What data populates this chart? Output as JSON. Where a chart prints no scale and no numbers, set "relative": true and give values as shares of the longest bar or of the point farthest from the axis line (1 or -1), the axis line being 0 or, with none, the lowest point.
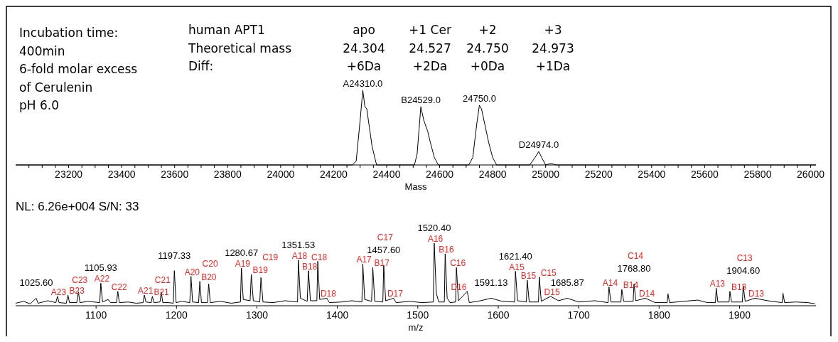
{
  "chart_data": [
    {
      "type": "line",
      "relative": true,
      "xlabel": "Mass",
      "xlim": [
        23000,
        26020
      ],
      "xticks": [
        {
          "value": 23050,
          "label": null
        },
        {
          "value": 23100,
          "label": null
        },
        {
          "value": 23150,
          "label": null
        },
        23200,
        {
          "value": 23250,
          "label": null
        },
        {
          "value": 23300,
          "label": null
        },
        {
          "value": 23350,
          "label": null
        },
        23400,
        {
          "value": 23450,
          "label": null
        },
        {
          "value": 23500,
          "label": null
        },
        {
          "value": 23550,
          "label": null
        },
        23600,
        {
          "value": 23650,
          "label": null
        },
        {
          "value": 23700,
          "label": null
        },
        {
          "value": 23750,
          "label": null
        },
        23800,
        {
          "value": 23850,
          "label": null
        },
        {
          "value": 23900,
          "label": null
        },
        {
          "value": 23950,
          "label": null
        },
        24000,
        {
          "value": 24050,
          "label": null
        },
        {
          "value": 24100,
          "label": null
        },
        {
          "value": 24150,
          "label": null
        },
        24200,
        {
          "value": 24250,
          "label": null
        },
        {
          "value": 24300,
          "label": null
        },
        {
          "value": 24350,
          "label": null
        },
        24400,
        {
          "value": 24450,
          "label": null
        },
        {
          "value": 24500,
          "label": null
        },
        {
          "value": 24550,
          "label": null
        },
        24600,
        {
          "value": 24650,
          "label": null
        },
        {
          "value": 24700,
          "label": null
        },
        {
          "value": 24750,
          "label": null
        },
        24800,
        {
          "value": 24850,
          "label": null
        },
        {
          "value": 24900,
          "label": null
        },
        {
          "value": 24950,
          "label": null
        },
        25000,
        {
          "value": 25050,
          "label": null
        },
        {
          "value": 25100,
          "label": null
        },
        {
          "value": 25150,
          "label": null
        },
        25200,
        {
          "value": 25250,
          "label": null
        },
        {
          "value": 25300,
          "label": null
        },
        {
          "value": 25350,
          "label": null
        },
        25400,
        {
          "value": 25450,
          "label": null
        },
        {
          "value": 25500,
          "label": null
        },
        {
          "value": 25550,
          "label": null
        },
        25600,
        {
          "value": 25650,
          "label": null
        },
        {
          "value": 25700,
          "label": null
        },
        {
          "value": 25750,
          "label": null
        },
        25800,
        {
          "value": 25850,
          "label": null
        },
        {
          "value": 25900,
          "label": null
        },
        {
          "value": 25950,
          "label": null
        },
        26000
      ],
      "series": [
        {
          "color": "#000000",
          "x": [
            23000,
            24270,
            24285,
            24300,
            24310,
            24318,
            24325,
            24335,
            24345,
            24362,
            24505,
            24515,
            24529,
            24540,
            24555,
            24565,
            24580,
            24595,
            24710,
            24725,
            24740,
            24750,
            24758,
            24770,
            24785,
            24800,
            24815,
            24940,
            24960,
            24974,
            24985,
            25000,
            25020,
            25040,
            26020
          ],
          "values": [
            0,
            0,
            0.05,
            0.6,
            1,
            0.78,
            0.75,
            0.5,
            0.25,
            0,
            0,
            0.15,
            0.78,
            0.6,
            0.45,
            0.3,
            0.1,
            0,
            0,
            0.1,
            0.55,
            0.8,
            0.75,
            0.55,
            0.3,
            0.1,
            0,
            0,
            0.1,
            0.18,
            0.1,
            0,
            0.02,
            0,
            0
          ]
        }
      ],
      "annotations": [
        "Incubation time:",
        "400min",
        "6-fold molar excess",
        "of Cerulenin",
        "pH 6.0",
        "human APT1",
        "apo",
        "+1 Cer",
        "+2",
        "+3",
        "Theoretical mass",
        "24.304",
        "24.527",
        "24.750",
        "24.973",
        "Diff:",
        "+6Da",
        "+2Da",
        "+0Da",
        "+1Da",
        {
          "text": "A24310.0",
          "x": 24310,
          "y": 1
        },
        {
          "text": "B24529.0",
          "x": 24529,
          "y": 0.78
        },
        {
          "text": "24750.0",
          "x": 24750,
          "y": 0.8
        },
        {
          "text": "D24974.0",
          "x": 24974,
          "y": 0.18
        }
      ]
    },
    {
      "type": "line",
      "relative": true,
      "title": "NL: 6.26e+004  S/N: 33",
      "xlabel": "m/z",
      "xlim": [
        1000,
        1995
      ],
      "xticks": [
        1100,
        1200,
        1300,
        1400,
        1500,
        1600,
        1700,
        1800,
        1900
      ],
      "series": [
        {
          "color": "#000000",
          "x": [
            1000,
            1010,
            1018,
            1025.6,
            1028,
            1040,
            1050,
            1052,
            1054,
            1063,
            1065,
            1067,
            1076,
            1078,
            1080,
            1090,
            1104.5,
            1105.9,
            1108,
            1115,
            1118,
            1125.5,
            1127,
            1129,
            1140,
            1150,
            1158.5,
            1160,
            1162,
            1168.5,
            1170,
            1172,
            1179.5,
            1181,
            1183,
            1190,
            1196,
            1197.3,
            1199.5,
            1207,
            1216.5,
            1218,
            1220,
            1227.5,
            1229,
            1231,
            1238.5,
            1240,
            1242,
            1255,
            1268,
            1279.5,
            1280.7,
            1283,
            1291.5,
            1293,
            1295.5,
            1303.5,
            1305,
            1307.5,
            1320,
            1335,
            1350.5,
            1351.5,
            1354,
            1362.5,
            1364,
            1366.5,
            1374.5,
            1375.6,
            1378,
            1387,
            1390,
            1405,
            1418,
            1430.5,
            1431.6,
            1434,
            1442.5,
            1444,
            1446.5,
            1456.5,
            1457.6,
            1460,
            1470,
            1473,
            1490,
            1505,
            1519.3,
            1520.4,
            1523,
            1526,
            1533,
            1534,
            1536.5,
            1540,
            1547,
            1548,
            1550.5,
            1561.5,
            1564,
            1578,
            1591.1,
            1605,
            1620.3,
            1621.4,
            1624,
            1635,
            1636,
            1638.5,
            1650,
            1651,
            1653.5,
            1665,
            1675,
            1685.9,
            1700,
            1720,
            1736.5,
            1737.7,
            1740,
            1752.5,
            1753.6,
            1756,
            1767.7,
            1768.8,
            1771,
            1783,
            1795,
            1810,
            1811,
            1813,
            1830,
            1848,
            1860,
            1870,
            1871,
            1873,
            1887,
            1888,
            1890,
            1903.5,
            1904.6,
            1907,
            1919,
            1935,
            1953,
            1954,
            1956,
            1970,
            1985,
            1994
          ],
          "values": [
            0.04,
            0.07,
            0.03,
            0.12,
            0.04,
            0.08,
            0.05,
            0.15,
            0.05,
            0.04,
            0.17,
            0.05,
            0.05,
            0.22,
            0.05,
            0.07,
            0.05,
            0.36,
            0.06,
            0.1,
            0.05,
            0.05,
            0.23,
            0.05,
            0.06,
            0.04,
            0.05,
            0.17,
            0.06,
            0.05,
            0.15,
            0.05,
            0.06,
            0.22,
            0.05,
            0.05,
            0.04,
            0.56,
            0.05,
            0.07,
            0.05,
            0.47,
            0.06,
            0.05,
            0.39,
            0.05,
            0.05,
            0.35,
            0.05,
            0.07,
            0.04,
            0.06,
            0.6,
            0.1,
            0.08,
            0.5,
            0.08,
            0.06,
            0.45,
            0.06,
            0.05,
            0.08,
            0.06,
            0.73,
            0.12,
            0.07,
            0.56,
            0.08,
            0.08,
            0.71,
            0.1,
            0.12,
            0.05,
            0.06,
            0.08,
            0.06,
            0.67,
            0.1,
            0.07,
            0.61,
            0.07,
            0.06,
            0.65,
            0.08,
            0.12,
            0.05,
            0.07,
            0.05,
            0.06,
            1,
            0.2,
            0.06,
            0.06,
            0.83,
            0.12,
            0.05,
            0.06,
            0.61,
            0.08,
            0.23,
            0.05,
            0.08,
            0.12,
            0.07,
            0.06,
            0.55,
            0.08,
            0.06,
            0.41,
            0.06,
            0.06,
            0.46,
            0.07,
            0.15,
            0.08,
            0.12,
            0.06,
            0.08,
            0.05,
            0.3,
            0.06,
            0.06,
            0.26,
            0.07,
            0.07,
            0.35,
            0.08,
            0.12,
            0.05,
            0.05,
            0.19,
            0.05,
            0.07,
            0.09,
            0.05,
            0.05,
            0.28,
            0.06,
            0.06,
            0.23,
            0.06,
            0.06,
            0.32,
            0.07,
            0.12,
            0.08,
            0.05,
            0.2,
            0.05,
            0.06,
            0.05,
            0.03
          ]
        }
      ],
      "annotations": [
        {
          "text": "1025.60",
          "x": 1025.6,
          "y": 0.12
        },
        {
          "text": "1105.93",
          "x": 1105.9,
          "y": 0.36
        },
        {
          "text": "1197.33",
          "x": 1197.3,
          "y": 0.56
        },
        {
          "text": "1280.67",
          "x": 1280.7,
          "y": 0.6
        },
        {
          "text": "1351.53",
          "x": 1351.5,
          "y": 0.73
        },
        {
          "text": "1457.60",
          "x": 1457.6,
          "y": 0.65
        },
        {
          "text": "1520.40",
          "x": 1520.4,
          "y": 1
        },
        {
          "text": "1591.13",
          "x": 1591.1,
          "y": 0.12
        },
        {
          "text": "1621.40",
          "x": 1621.4,
          "y": 0.55
        },
        {
          "text": "1685.87",
          "x": 1685.9,
          "y": 0.12
        },
        {
          "text": "1768.80",
          "x": 1768.8,
          "y": 0.35
        },
        {
          "text": "1904.60",
          "x": 1904.6,
          "y": 0.32
        },
        {
          "text": "A23",
          "x": 1052,
          "y": 0.15
        },
        {
          "text": "B23",
          "x": 1065,
          "y": 0.17
        },
        {
          "text": "C23",
          "x": 1078,
          "y": 0.22
        },
        {
          "text": "A22",
          "x": 1105.9,
          "y": 0.36
        },
        {
          "text": "C22",
          "x": 1127,
          "y": 0.23
        },
        {
          "text": "A21",
          "x": 1160,
          "y": 0.17
        },
        {
          "text": "B21",
          "x": 1170,
          "y": 0.15
        },
        {
          "text": "C21",
          "x": 1181,
          "y": 0.22
        },
        {
          "text": "A20",
          "x": 1218,
          "y": 0.47
        },
        {
          "text": "B20",
          "x": 1229,
          "y": 0.39
        },
        {
          "text": "C20",
          "x": 1240,
          "y": 0.35
        },
        {
          "text": "A19",
          "x": 1280.7,
          "y": 0.6
        },
        {
          "text": "B19",
          "x": 1293,
          "y": 0.5
        },
        {
          "text": "C19",
          "x": 1305,
          "y": 0.45
        },
        {
          "text": "A18",
          "x": 1351.5,
          "y": 0.73
        },
        {
          "text": "B18",
          "x": 1364,
          "y": 0.56
        },
        {
          "text": "C18",
          "x": 1375.6,
          "y": 0.71
        },
        {
          "text": "D18",
          "x": 1387,
          "y": 0.12
        },
        {
          "text": "A17",
          "x": 1431.6,
          "y": 0.67
        },
        {
          "text": "B17",
          "x": 1444,
          "y": 0.61
        },
        {
          "text": "C17",
          "x": 1457.6,
          "y": 0.65
        },
        {
          "text": "D17",
          "x": 1470,
          "y": 0.12
        },
        {
          "text": "A16",
          "x": 1520.4,
          "y": 1
        },
        {
          "text": "B16",
          "x": 1534,
          "y": 0.83
        },
        {
          "text": "C16",
          "x": 1548,
          "y": 0.61
        },
        {
          "text": "D16",
          "x": 1561.5,
          "y": 0.23
        },
        {
          "text": "A15",
          "x": 1621.4,
          "y": 0.55
        },
        {
          "text": "B15",
          "x": 1636,
          "y": 0.41
        },
        {
          "text": "C15",
          "x": 1651,
          "y": 0.46
        },
        {
          "text": "D15",
          "x": 1665,
          "y": 0.15
        },
        {
          "text": "A14",
          "x": 1737.7,
          "y": 0.3
        },
        {
          "text": "B14",
          "x": 1753.6,
          "y": 0.26
        },
        {
          "text": "C14",
          "x": 1768.8,
          "y": 0.35
        },
        {
          "text": "D14",
          "x": 1783,
          "y": 0.12
        },
        {
          "text": "A13",
          "x": 1871,
          "y": 0.28
        },
        {
          "text": "B13",
          "x": 1888,
          "y": 0.23
        },
        {
          "text": "C13",
          "x": 1904.6,
          "y": 0.32
        },
        {
          "text": "D13",
          "x": 1919,
          "y": 0.12
        }
      ]
    }
  ]
}
